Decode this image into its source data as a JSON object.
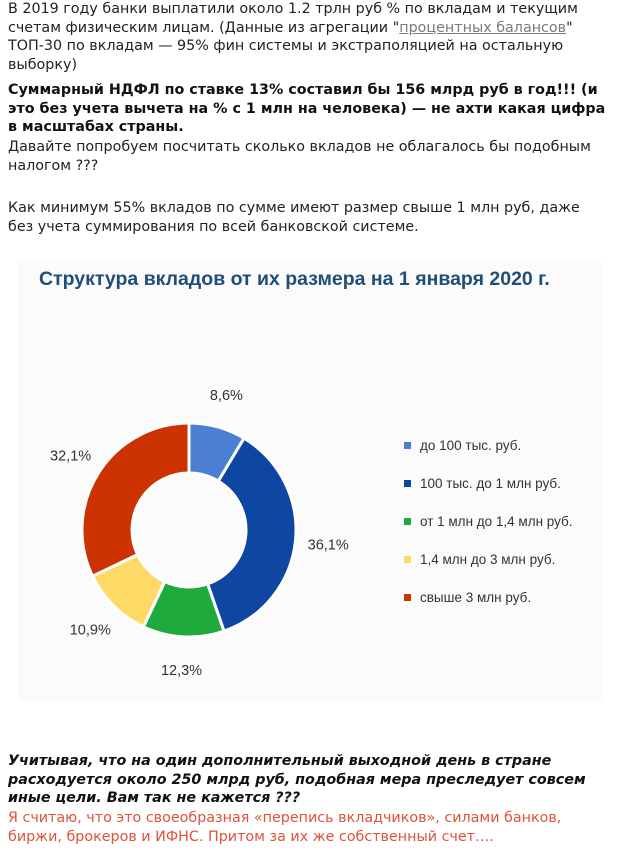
{
  "intro": {
    "p1_before": "В 2019 году банки выплатили около 1.2 трлн руб % по вкладам и текущим счетам физическим лицам. (Данные из агрегации \"",
    "p1_link": "процентных балансов",
    "p1_after": "\" ТОП-30 по вкладам — 95% фин системы и экстраполяцией на остальную выборку)",
    "p2": "Суммарный НДФЛ по ставке 13% составил бы 156 млрд руб  в год!!! (и это без учета вычета на % с 1 млн на человека) — не ахти какая цифра в масштабах страны.",
    "p3": "Давайте попробуем посчитать сколько вкладов не облагалось бы подобным налогом ???",
    "p4": "Как минимум 55% вкладов по сумме имеют размер свыше 1 млн руб, даже без учета суммирования по всей банковской системе."
  },
  "chart_data": {
    "type": "pie",
    "title": "Структура вкладов от их размера на 1 января 2020 г.",
    "donut": true,
    "legend_position": "right",
    "slices": [
      {
        "label": "до 100 тыс. руб.",
        "value": 8.6,
        "value_label": "8,6%",
        "color": "#4a7fd4"
      },
      {
        "label": "100 тыс. до 1 млн руб.",
        "value": 36.1,
        "value_label": "36,1%",
        "color": "#0d47a1"
      },
      {
        "label": "от 1 млн до 1,4 млн руб.",
        "value": 12.3,
        "value_label": "12,3%",
        "color": "#1faa3c"
      },
      {
        "label": "1,4 млн до 3 млн руб.",
        "value": 10.9,
        "value_label": "10,9%",
        "color": "#ffd966"
      },
      {
        "label": "свыше 3 млн руб.",
        "value": 32.1,
        "value_label": "32,1%",
        "color": "#cc3300"
      }
    ]
  },
  "outro": {
    "p5": "Учитывая, что на один дополнительный выходной день в стране расходуется около 250 млрд руб, подобная мера преследует совсем иные цели. Вам так не кажется ???",
    "p6": "Я считаю, что это своеобразная «перепись вкладчиков», силами банков, биржи, брокеров и ИФНС. Притом за их же собственный счет…."
  }
}
